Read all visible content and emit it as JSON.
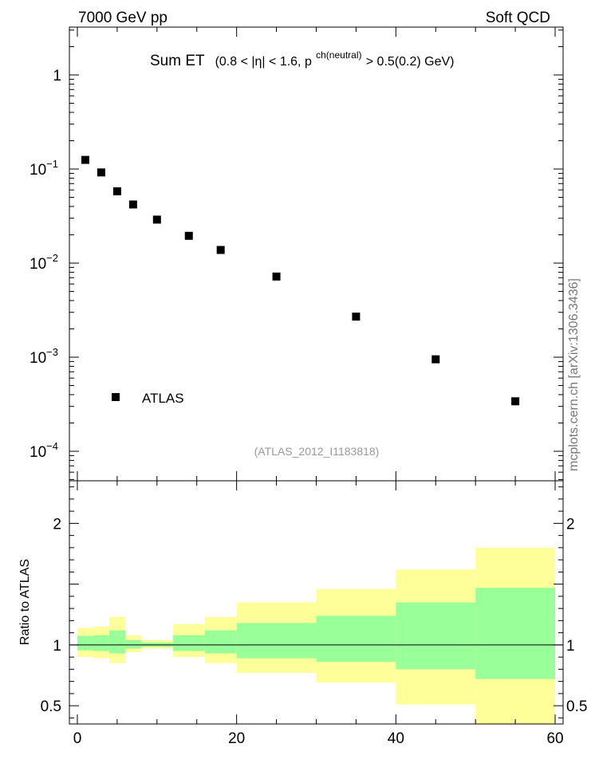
{
  "header": {
    "left": "7000 GeV pp",
    "right": "Soft QCD"
  },
  "side_label": "mcplots.cern.ch [arXiv:1306.3436]",
  "chart_data": [
    {
      "type": "scatter",
      "title": {
        "main": "Sum ET",
        "detail_part1": "(0.8 < |η| < 1.6, p",
        "detail_sup": "ch(neutral)",
        "detail_part2": " > 0.5(0.2) GeV)"
      },
      "reference": "(ATLAS_2012_I1183818)",
      "y_scale": "log",
      "ylim": [
        5e-05,
        3
      ],
      "xlim": [
        -1,
        61
      ],
      "y_tick_labels": [
        {
          "value": 1,
          "base": "1",
          "exp": ""
        },
        {
          "value": 0.1,
          "base": "10",
          "exp": "−1"
        },
        {
          "value": 0.01,
          "base": "10",
          "exp": "−2"
        },
        {
          "value": 0.001,
          "base": "10",
          "exp": "−3"
        },
        {
          "value": 0.0001,
          "base": "10",
          "exp": "−4"
        }
      ],
      "legend": {
        "label": "ATLAS",
        "position": "lower-left"
      },
      "series": [
        {
          "name": "ATLAS",
          "x": [
            1,
            3,
            5,
            7,
            10,
            14,
            18,
            25,
            35,
            45,
            55
          ],
          "y": [
            0.125,
            0.092,
            0.058,
            0.042,
            0.029,
            0.0195,
            0.0138,
            0.0072,
            0.0027,
            0.00095,
            0.00034
          ]
        }
      ]
    },
    {
      "type": "area",
      "ylabel": "Ratio to ATLAS",
      "ylim": [
        0.35,
        2.35
      ],
      "xlim": [
        -1,
        61
      ],
      "y_ticks": [
        0.5,
        1,
        2
      ],
      "y_tick_labels": [
        "0.5",
        "1",
        "2"
      ],
      "x_ticks": [
        0,
        20,
        40,
        60
      ],
      "x_tick_labels": [
        "0",
        "20",
        "40",
        "60"
      ],
      "reference_line": 1,
      "colors": {
        "outer_band": "#ffff99",
        "inner_band": "#99ff99",
        "line": "#000000"
      },
      "bins": [
        {
          "x0": 0,
          "x1": 2,
          "outer": [
            0.9,
            1.14
          ],
          "inner": [
            0.955,
            1.075
          ]
        },
        {
          "x0": 2,
          "x1": 4,
          "outer": [
            0.89,
            1.15
          ],
          "inner": [
            0.95,
            1.08
          ]
        },
        {
          "x0": 4,
          "x1": 6,
          "outer": [
            0.85,
            1.23
          ],
          "inner": [
            0.93,
            1.12
          ]
        },
        {
          "x0": 6,
          "x1": 8,
          "outer": [
            0.94,
            1.08
          ],
          "inner": [
            0.97,
            1.04
          ]
        },
        {
          "x0": 8,
          "x1": 12,
          "outer": [
            0.97,
            1.04
          ],
          "inner": [
            0.985,
            1.02
          ]
        },
        {
          "x0": 12,
          "x1": 16,
          "outer": [
            0.9,
            1.17
          ],
          "inner": [
            0.95,
            1.08
          ]
        },
        {
          "x0": 16,
          "x1": 20,
          "outer": [
            0.85,
            1.23
          ],
          "inner": [
            0.93,
            1.12
          ]
        },
        {
          "x0": 20,
          "x1": 30,
          "outer": [
            0.77,
            1.35
          ],
          "inner": [
            0.89,
            1.18
          ]
        },
        {
          "x0": 30,
          "x1": 40,
          "outer": [
            0.69,
            1.46
          ],
          "inner": [
            0.86,
            1.24
          ]
        },
        {
          "x0": 40,
          "x1": 50,
          "outer": [
            0.51,
            1.62
          ],
          "inner": [
            0.8,
            1.35
          ]
        },
        {
          "x0": 50,
          "x1": 60,
          "outer": [
            0.35,
            1.8
          ],
          "inner": [
            0.72,
            1.47
          ]
        }
      ]
    }
  ]
}
